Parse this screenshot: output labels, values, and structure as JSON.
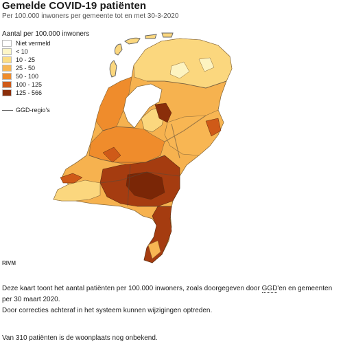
{
  "header": {
    "title": "Gemelde COVID-19 patiënten",
    "subtitle": "Per 100.000 inwoners per gemeente tot en met 30-3-2020"
  },
  "legend": {
    "title": "Aantal per 100.000 inwoners",
    "items": [
      {
        "label": "Niet vermeld",
        "color": "#ffffff"
      },
      {
        "label": "< 10",
        "color": "#fdf6c8"
      },
      {
        "label": "10 - 25",
        "color": "#fbdd86"
      },
      {
        "label": "25 - 50",
        "color": "#f8b653"
      },
      {
        "label": "50 - 100",
        "color": "#ef8c2c"
      },
      {
        "label": "100 - 125",
        "color": "#cf5a18"
      },
      {
        "label": "125 - 566",
        "color": "#8a2e0a"
      }
    ],
    "region_label": "GGD-regio's"
  },
  "source": "RIVM",
  "description": {
    "line1_pre": "Deze kaart toont het aantal patiënten per 100.000 inwoners, zoals doorgegeven door ",
    "line1_abbr": "GGD",
    "line1_post": "'en en gemeenten per 30 maart 2020.",
    "line2": "Door correcties achteraf in het systeem kunnen wijzigingen optreden.",
    "line3": "Van 310 patiënten is de woonplaats nog onbekend."
  }
}
